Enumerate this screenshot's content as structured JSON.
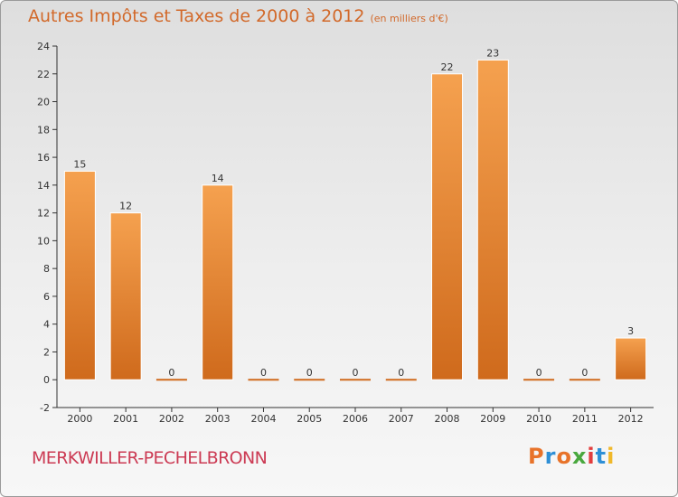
{
  "header": {
    "title": "Autres Impôts et Taxes de 2000 à 2012",
    "unit": "(en milliers d'€)"
  },
  "footer": {
    "commune": "MERKWILLER-PECHELBRONN",
    "brand": "Proxiti",
    "brand_colors": [
      "#e8732a",
      "#2e8fd6",
      "#e8732a",
      "#49a83e",
      "#e33d3d",
      "#2e8fd6",
      "#f0b82a"
    ]
  },
  "colors": {
    "bar_light": "#f5a14f",
    "bar_dark": "#cf6a1c",
    "text": "#d2692a",
    "axis": "#333333"
  },
  "chart_data": {
    "type": "bar",
    "categories": [
      "2000",
      "2001",
      "2002",
      "2003",
      "2004",
      "2005",
      "2006",
      "2007",
      "2008",
      "2009",
      "2010",
      "2011",
      "2012"
    ],
    "values": [
      15,
      12,
      0,
      14,
      0,
      0,
      0,
      0,
      22,
      23,
      0,
      0,
      3
    ],
    "data_labels": [
      "15",
      "12",
      "0",
      "14",
      "0",
      "0",
      "0",
      "0",
      "22",
      "23",
      "0",
      "0",
      "3"
    ],
    "yticks": [
      -2,
      0,
      2,
      4,
      6,
      8,
      10,
      12,
      14,
      16,
      18,
      20,
      22,
      24
    ],
    "ylim": [
      -2,
      24
    ],
    "grid": false,
    "legend": "none"
  }
}
